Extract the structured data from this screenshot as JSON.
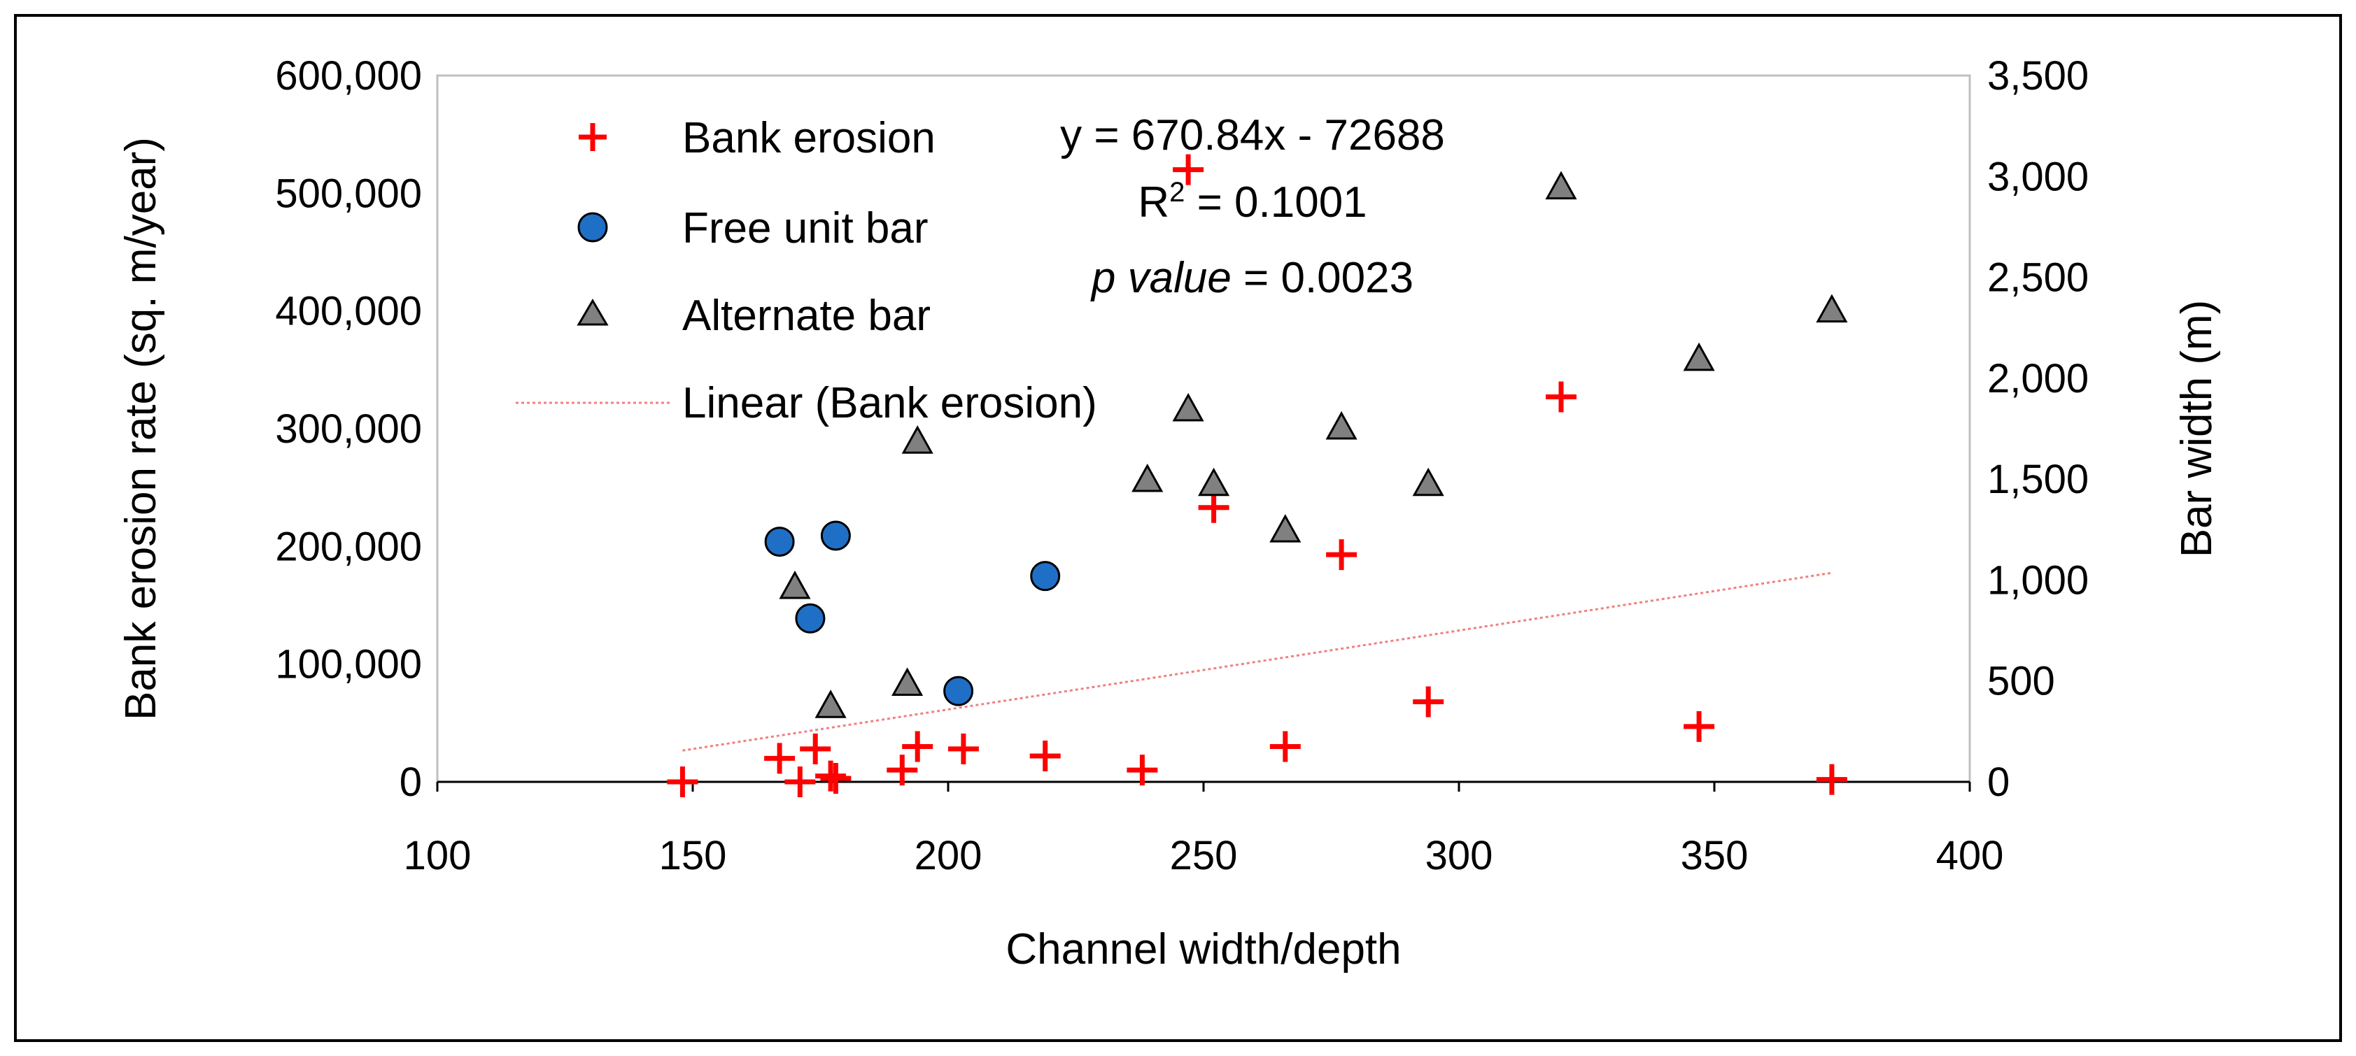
{
  "chart_data": {
    "type": "scatter",
    "xlabel": "Channel width/depth",
    "ylabel": "Bank erosion rate (sq. m/year)",
    "y2label": "Bar width (m)",
    "xlim": [
      100,
      400
    ],
    "ylim": [
      0,
      600000
    ],
    "y2lim": [
      0,
      3500
    ],
    "xticks": [
      100,
      150,
      200,
      250,
      300,
      350,
      400
    ],
    "yticks": [
      0,
      100000,
      200000,
      300000,
      400000,
      500000,
      600000
    ],
    "y2ticks": [
      0,
      500,
      1000,
      1500,
      2000,
      2500,
      3000,
      3500
    ],
    "xtick_labels": [
      "100",
      "150",
      "200",
      "250",
      "300",
      "350",
      "400"
    ],
    "ytick_labels": [
      "0",
      "100,000",
      "200,000",
      "300,000",
      "400,000",
      "500,000",
      "600,000"
    ],
    "y2tick_labels": [
      "0",
      "500",
      "1,000",
      "1,500",
      "2,000",
      "2,500",
      "3,000",
      "3,500"
    ],
    "grid": false,
    "legend_position": "top-left",
    "series": [
      {
        "name": "Bank erosion",
        "marker": "plus",
        "color": "#FF0000",
        "axis": "left",
        "points": [
          [
            148,
            0
          ],
          [
            167,
            20000
          ],
          [
            171,
            0
          ],
          [
            174,
            28000
          ],
          [
            177,
            5000
          ],
          [
            178,
            3000
          ],
          [
            191,
            10000
          ],
          [
            194,
            30000
          ],
          [
            203,
            28000
          ],
          [
            219,
            22000
          ],
          [
            238,
            10000
          ],
          [
            247,
            520000
          ],
          [
            252,
            233000
          ],
          [
            266,
            30000
          ],
          [
            277,
            193000
          ],
          [
            294,
            68000
          ],
          [
            320,
            327000
          ],
          [
            347,
            47000
          ],
          [
            373,
            2000
          ]
        ]
      },
      {
        "name": "Free unit bar",
        "marker": "circle",
        "color": "#1F6FC6",
        "axis": "right",
        "points": [
          [
            167,
            1190
          ],
          [
            173,
            810
          ],
          [
            178,
            1220
          ],
          [
            202,
            450
          ],
          [
            219,
            1020
          ]
        ]
      },
      {
        "name": "Alternate bar",
        "marker": "triangle",
        "color": "#808080",
        "axis": "right",
        "points": [
          [
            170,
            960
          ],
          [
            177,
            370
          ],
          [
            192,
            480
          ],
          [
            194,
            1680
          ],
          [
            239,
            1490
          ],
          [
            247,
            1840
          ],
          [
            252,
            1470
          ],
          [
            266,
            1240
          ],
          [
            277,
            1750
          ],
          [
            294,
            1470
          ],
          [
            320,
            2940
          ],
          [
            347,
            2090
          ],
          [
            373,
            2330
          ]
        ]
      }
    ],
    "trendline": {
      "name": "Linear (Bank erosion)",
      "color": "#F08080",
      "slope": 670.84,
      "intercept": -72688,
      "x_range": [
        148,
        373
      ]
    },
    "annotations": {
      "equation": "y = 670.84x - 72688",
      "r2_prefix": "R",
      "r2_sup": "2",
      "r2_value": " = 0.1001",
      "p_label": "p value",
      "p_value": " = 0.0023"
    }
  }
}
